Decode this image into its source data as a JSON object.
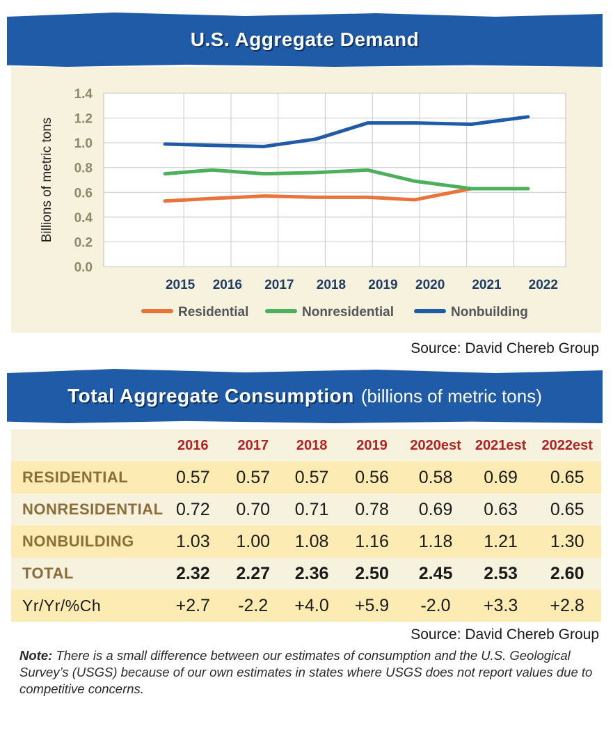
{
  "chart_banner": {
    "title": "U.S. Aggregate Demand"
  },
  "chart_data": {
    "type": "line",
    "title": "U.S. Aggregate Demand",
    "ylabel": "Billions of metric tons",
    "xlabel": "",
    "categories": [
      "2015",
      "2016",
      "2017",
      "2018",
      "2019",
      "2020",
      "2021",
      "2022"
    ],
    "x_points": [
      2014.7,
      2015.7,
      2016.8,
      2017.9,
      2019.0,
      2020.0,
      2021.2,
      2022.4
    ],
    "yticks": [
      "0.0",
      "0.2",
      "0.4",
      "0.6",
      "0.8",
      "1.0",
      "1.2",
      "1.4"
    ],
    "ylim": [
      0,
      1.4
    ],
    "grid": true,
    "legend": "bottom",
    "series": [
      {
        "name": "Residential",
        "color": "#e8743b",
        "values": [
          0.53,
          0.55,
          0.57,
          0.56,
          0.56,
          0.54,
          0.63,
          0.63
        ]
      },
      {
        "name": "Nonresidential",
        "color": "#4caf5c",
        "values": [
          0.75,
          0.78,
          0.75,
          0.76,
          0.78,
          0.69,
          0.63,
          0.63
        ]
      },
      {
        "name": "Nonbuilding",
        "color": "#1f5ba6",
        "values": [
          0.99,
          0.98,
          0.97,
          1.03,
          1.16,
          1.16,
          1.15,
          1.21
        ]
      }
    ]
  },
  "chart_source": "Source: David Chereb Group",
  "table_banner": {
    "title": "Total Aggregate Consumption",
    "subtitle": "(billions of metric tons)"
  },
  "table": {
    "headers": [
      "2016",
      "2017",
      "2018",
      "2019",
      "2020est",
      "2021est",
      "2022est"
    ],
    "rows": [
      {
        "label": "RESIDENTIAL",
        "values": [
          "0.57",
          "0.57",
          "0.57",
          "0.56",
          "0.58",
          "0.69",
          "0.65"
        ]
      },
      {
        "label": "NONRESIDENTIAL",
        "values": [
          "0.72",
          "0.70",
          "0.71",
          "0.78",
          "0.69",
          "0.63",
          "0.65"
        ]
      },
      {
        "label": "NONBUILDING",
        "values": [
          "1.03",
          "1.00",
          "1.08",
          "1.16",
          "1.18",
          "1.21",
          "1.30"
        ]
      },
      {
        "label": "TOTAL",
        "values": [
          "2.32",
          "2.27",
          "2.36",
          "2.50",
          "2.45",
          "2.53",
          "2.60"
        ]
      },
      {
        "label": "Yr/Yr/%Ch",
        "values": [
          "+2.7",
          "-2.2",
          "+4.0",
          "+5.9",
          "-2.0",
          "+3.3",
          "+2.8"
        ]
      }
    ]
  },
  "table_source": "Source: David Chereb Group",
  "note": {
    "label": "Note:",
    "text": "There is a small difference between our estimates of consumption and the U.S. Geological Survey’s (USGS) because of our own estimates in states where USGS does not report values due to competitive concerns."
  }
}
